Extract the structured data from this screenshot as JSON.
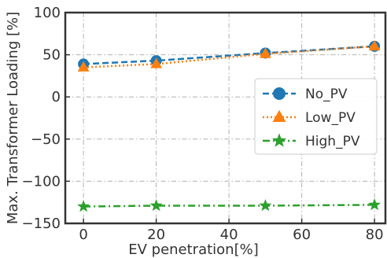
{
  "chart_data": {
    "type": "line",
    "title": "",
    "xlabel": "EV penetration[%]",
    "ylabel": "Max. Transformer Loading [%]",
    "x": [
      0,
      20,
      50,
      80
    ],
    "xlim": [
      -5,
      83
    ],
    "ylim": [
      -150,
      100
    ],
    "xticks": [
      0,
      20,
      40,
      60,
      80
    ],
    "yticks": [
      -150,
      -100,
      -50,
      0,
      50,
      100
    ],
    "xtick_labels": [
      "0",
      "20",
      "40",
      "60",
      "80"
    ],
    "ytick_labels": [
      "−150",
      "−100",
      "−50",
      "0",
      "50",
      "100"
    ],
    "grid": true,
    "legend_position": "center-right",
    "series": [
      {
        "name": "No_PV",
        "values": [
          39,
          43,
          52,
          60
        ],
        "color": "#1f77b4",
        "marker": "circle",
        "line_style": "dashed"
      },
      {
        "name": "Low_PV",
        "values": [
          35,
          39,
          51,
          60
        ],
        "color": "#ff7f0e",
        "marker": "triangle",
        "line_style": "dotted"
      },
      {
        "name": "High_PV",
        "values": [
          -130,
          -129,
          -129,
          -128
        ],
        "color": "#2ca02c",
        "marker": "star",
        "line_style": "dashdot"
      }
    ]
  }
}
